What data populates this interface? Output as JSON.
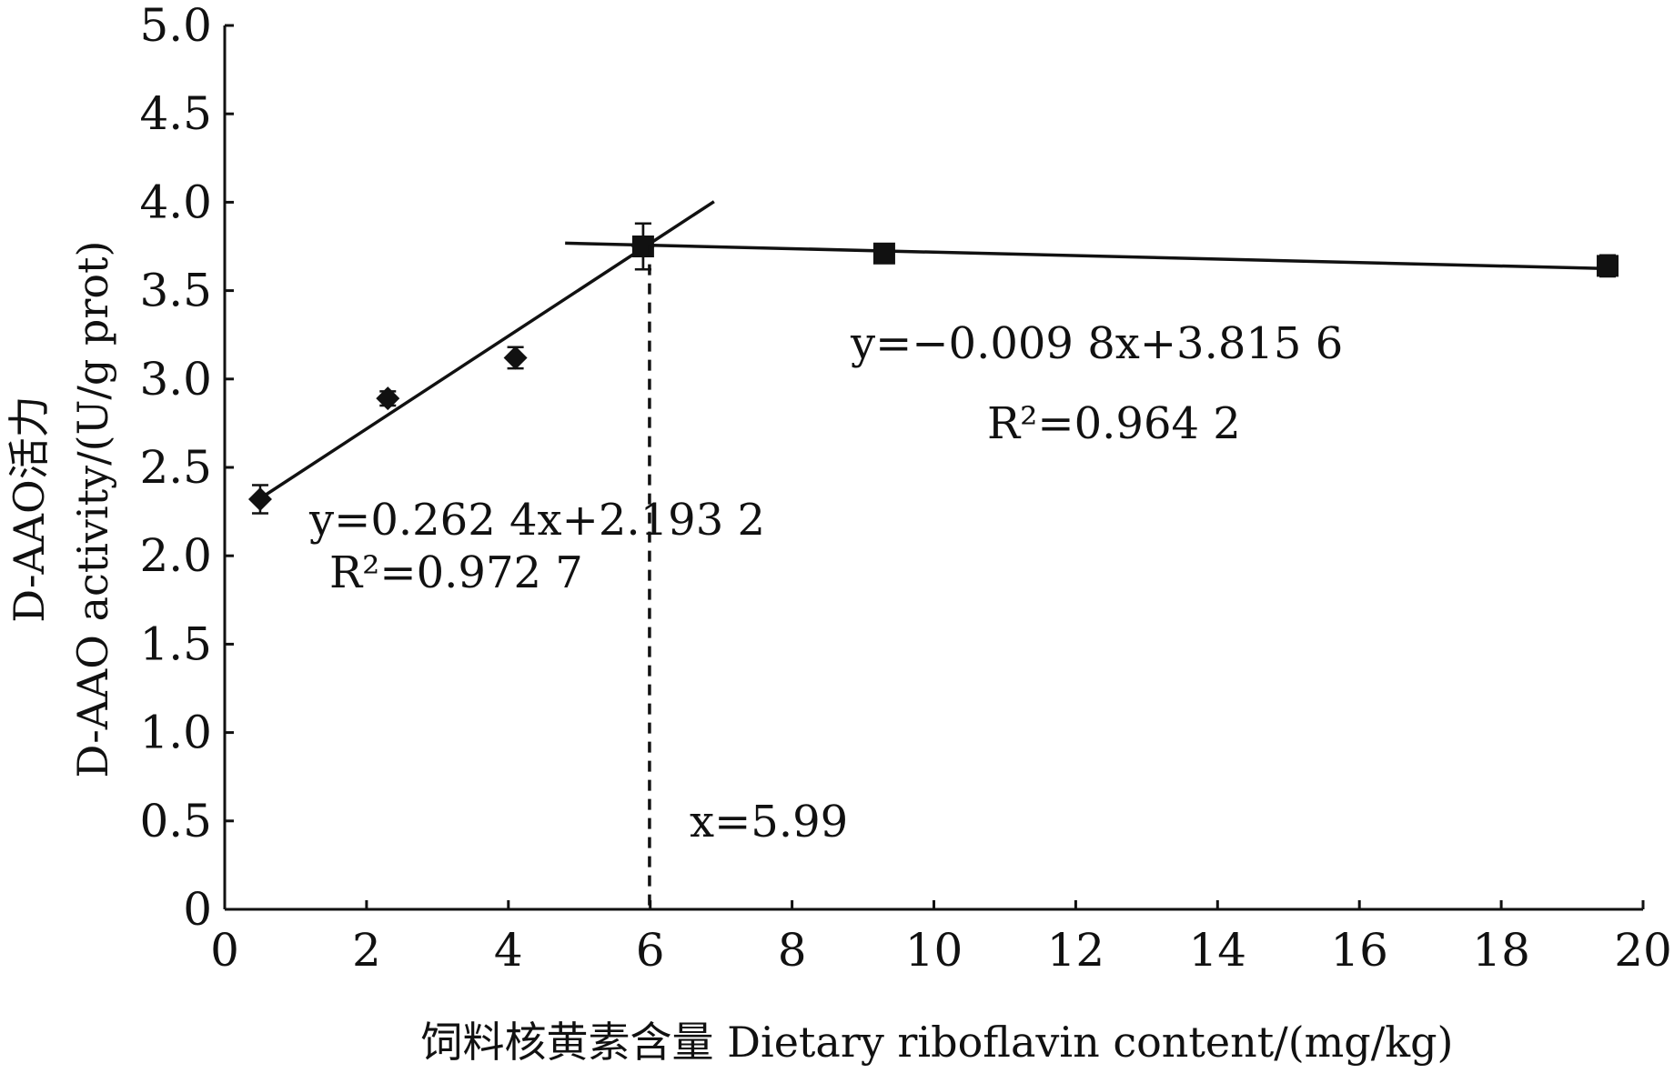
{
  "chart_data": {
    "type": "scatter",
    "x": [
      0.5,
      2.3,
      4.1,
      5.9,
      9.3,
      19.5
    ],
    "series": [
      {
        "values": [
          2.32,
          2.89,
          3.12,
          3.75,
          null,
          null
        ],
        "errors": [
          0.08,
          0.04,
          0.06,
          0.13,
          null,
          null
        ],
        "marker": "diamond"
      },
      {
        "values": [
          null,
          null,
          null,
          3.75,
          3.71,
          3.64
        ],
        "errors": [
          null,
          null,
          null,
          0.13,
          0.04,
          0.06
        ],
        "marker": "square"
      }
    ],
    "fits": [
      {
        "slope": 0.2624,
        "intercept": 2.1932,
        "x_range": [
          0.5,
          6.9
        ]
      },
      {
        "slope": -0.0098,
        "intercept": 3.8156,
        "x_range": [
          4.8,
          19.5
        ]
      }
    ],
    "breakpoint_x": 5.99,
    "xlim": [
      0,
      20
    ],
    "ylim": [
      0,
      5.0
    ],
    "x_ticks": [
      "0",
      "2",
      "4",
      "6",
      "8",
      "10",
      "12",
      "14",
      "16",
      "18",
      "20"
    ],
    "y_ticks": [
      "0",
      "0.5",
      "1.0",
      "1.5",
      "2.0",
      "2.5",
      "3.0",
      "3.5",
      "4.0",
      "4.5",
      "5.0"
    ],
    "xlabel": "饲料核黄素含量 Dietary riboflavin content/(mg/kg)",
    "ylabel_line1": "D-AAO活力",
    "ylabel_line2": "D-AAO activity/(U/g prot)",
    "annotations": {
      "eq1_y": "y=0.262 4x+2.193 2",
      "eq1_r2": "R²=0.972 7",
      "eq2_y": "y=−0.009 8x+3.815 6",
      "eq2_r2": "R²=0.964 2",
      "breakpoint": "x=5.99"
    }
  }
}
